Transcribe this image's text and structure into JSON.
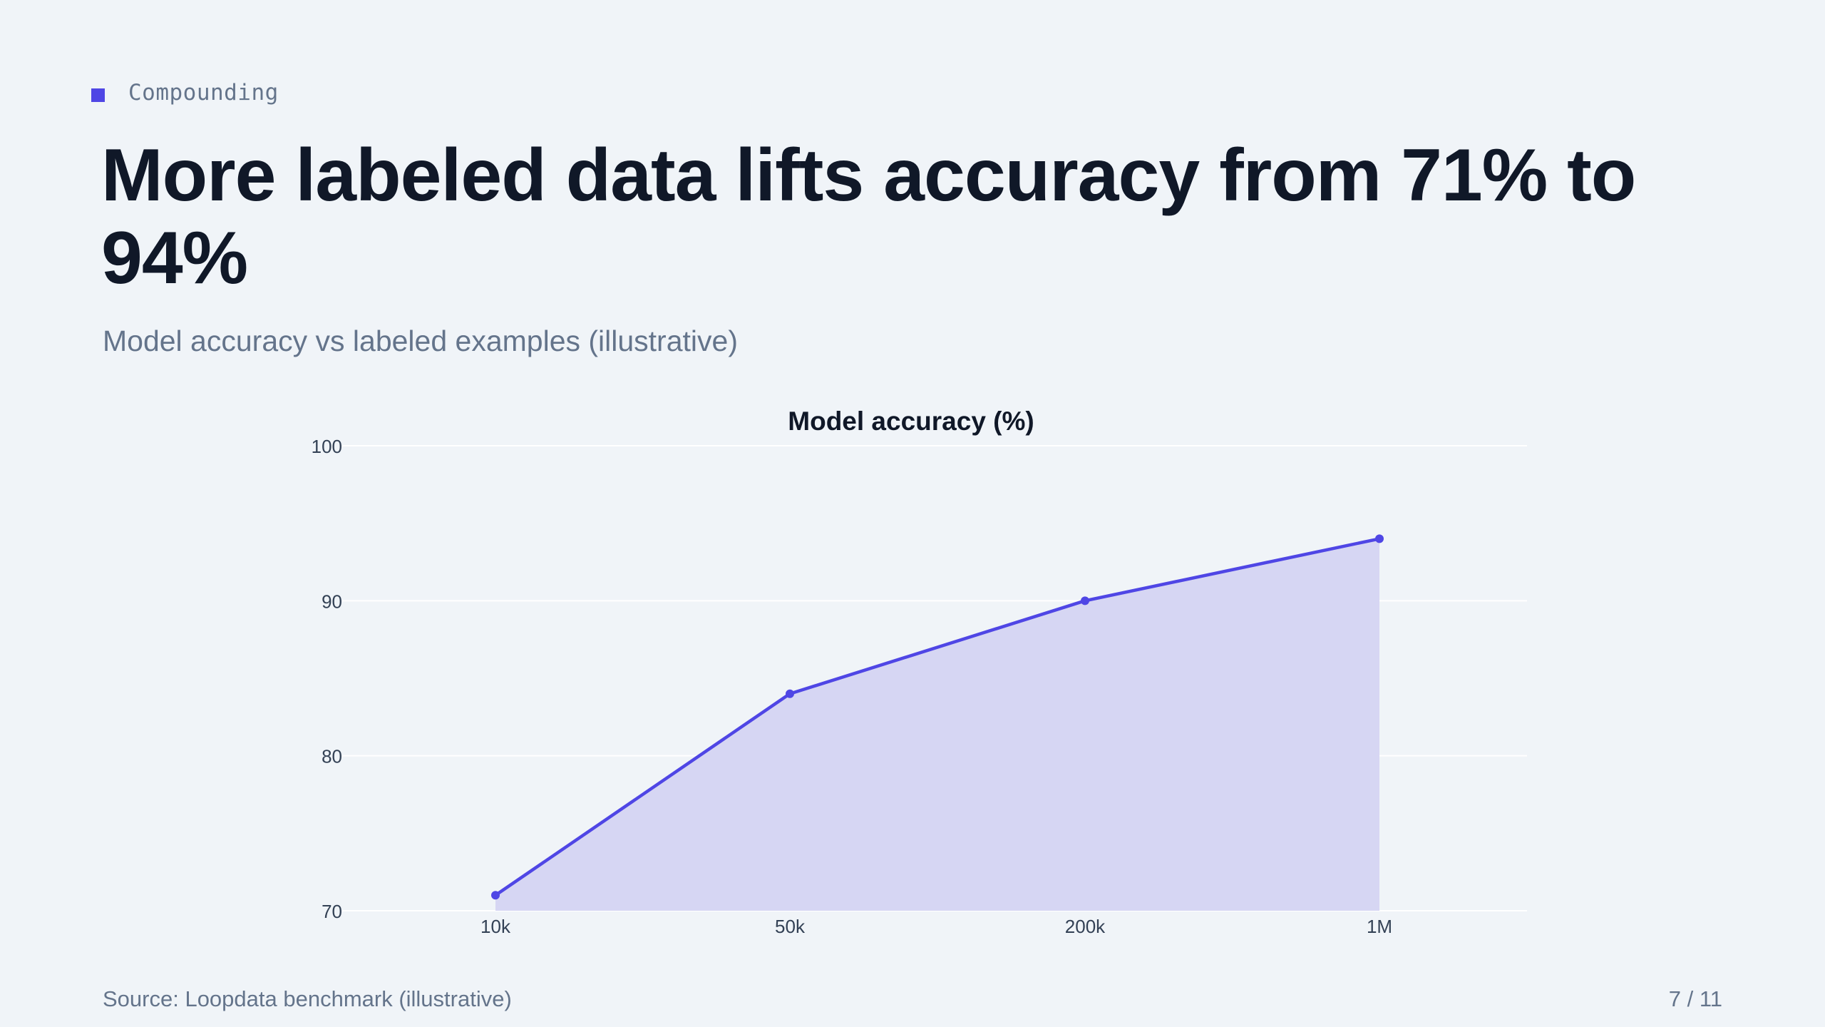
{
  "slide": {
    "eyebrow": "Compounding",
    "title": "More labeled data lifts accuracy from 71% to 94%",
    "subtitle": "Model accuracy vs labeled examples (illustrative)",
    "source": "Source: Loopdata benchmark (illustrative)",
    "page": "7 / 11"
  },
  "colors": {
    "accent": "#4f46e5",
    "area_fill": "#d4d4f2",
    "grid": "#ffffff",
    "text_dark": "#101828",
    "text_muted": "#64748b"
  },
  "chart_data": {
    "type": "area",
    "title": "Model accuracy (%)",
    "categories": [
      "10k",
      "50k",
      "200k",
      "1M"
    ],
    "values": [
      71,
      84,
      90,
      94
    ],
    "ylim": [
      70,
      100
    ],
    "yticks": [
      70,
      80,
      90,
      100
    ],
    "xlabel": "",
    "ylabel": "",
    "grid": true,
    "markers": true
  }
}
